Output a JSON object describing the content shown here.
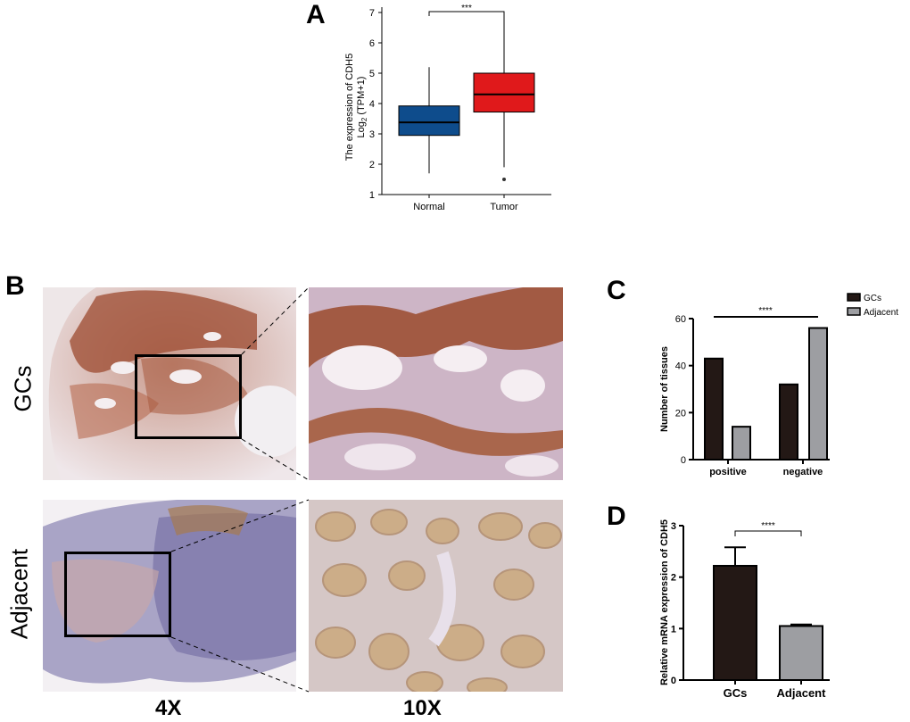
{
  "panels": {
    "a": "A",
    "b": "B",
    "c": "C",
    "d": "D"
  },
  "chart_data": [
    {
      "id": "A",
      "type": "box",
      "ylabel_line1": "The expression of CDH5",
      "ylabel_line2_base": "Log",
      "ylabel_line2_sub": "2",
      "ylabel_line2_rest": " (TPM+1)",
      "yticks": [
        "1",
        "2",
        "3",
        "4",
        "5",
        "6",
        "7"
      ],
      "ylim": [
        1,
        7
      ],
      "categories": [
        "Normal",
        "Tumor"
      ],
      "significance": "***",
      "boxes": [
        {
          "category": "Normal",
          "min": 1.7,
          "q1": 2.95,
          "median": 3.38,
          "q3": 3.92,
          "max": 5.2,
          "outliers": [],
          "color": "#0e4c8c"
        },
        {
          "category": "Tumor",
          "min": 1.9,
          "q1": 3.72,
          "median": 4.3,
          "q3": 5.0,
          "max": 6.9,
          "outliers": [
            1.5
          ],
          "color": "#e0191b"
        }
      ]
    },
    {
      "id": "C",
      "type": "bar",
      "ylabel": "Number of tissues",
      "yticks": [
        "0",
        "20",
        "40",
        "60"
      ],
      "ylim": [
        0,
        60
      ],
      "categories": [
        "positive",
        "negative"
      ],
      "significance": "****",
      "series": [
        {
          "name": "GCs",
          "values": [
            43,
            32
          ],
          "color": "#231815"
        },
        {
          "name": "Adjacent",
          "values": [
            14,
            56
          ],
          "color": "#9d9ea2"
        }
      ],
      "legend": "top-right"
    },
    {
      "id": "D",
      "type": "bar",
      "ylabel": "Relative mRNA expression of CDH5",
      "yticks": [
        "0",
        "1",
        "2",
        "3"
      ],
      "ylim": [
        0,
        3
      ],
      "categories": [
        "GCs",
        "Adjacent"
      ],
      "values": [
        2.22,
        1.05
      ],
      "errors": [
        0.36,
        0.03
      ],
      "colors": [
        "#231815",
        "#9d9ea2"
      ],
      "significance": "****"
    }
  ],
  "panel_b": {
    "rows": [
      "GCs",
      "Adjacent"
    ],
    "magnifications": [
      "4X",
      "10X"
    ]
  }
}
